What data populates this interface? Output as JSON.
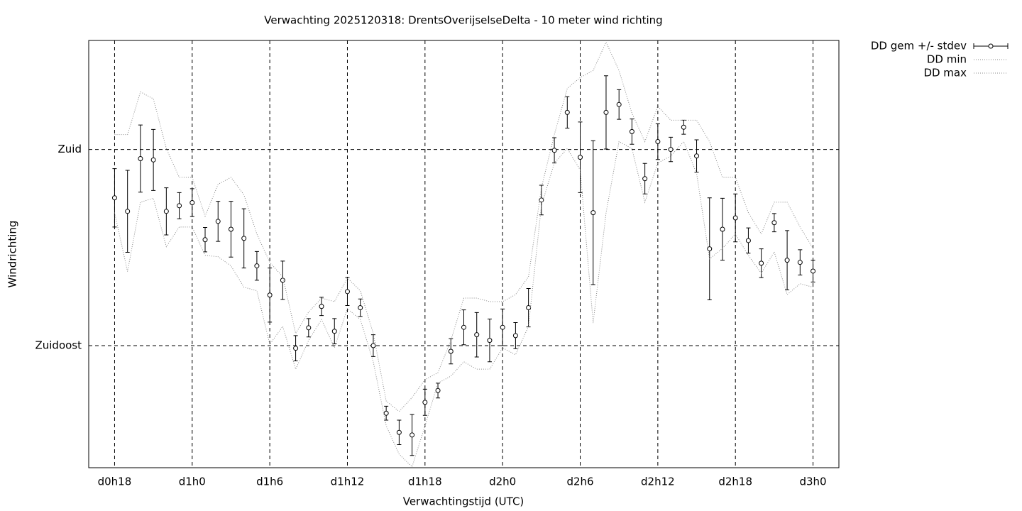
{
  "chart_data": {
    "type": "errorbar",
    "title": "Verwachting 2025120318: DrentsOverijselseDelta - 10 meter wind richting",
    "xlabel": "Verwachtingstijd (UTC)",
    "ylabel": "Windrichting",
    "x": [
      18,
      19,
      20,
      21,
      22,
      23,
      24,
      25,
      26,
      27,
      28,
      29,
      30,
      31,
      32,
      33,
      34,
      35,
      36,
      37,
      38,
      39,
      40,
      41,
      42,
      43,
      44,
      45,
      46,
      47,
      48,
      49,
      50,
      51,
      52,
      53,
      54,
      55,
      56,
      57,
      58,
      59,
      60,
      61,
      62,
      63,
      64,
      65,
      66,
      67,
      68,
      69,
      70,
      71,
      72
    ],
    "xlim": [
      16,
      74
    ],
    "xticks": [
      {
        "value": 18,
        "label": "d0h18"
      },
      {
        "value": 24,
        "label": "d1h0"
      },
      {
        "value": 30,
        "label": "d1h6"
      },
      {
        "value": 36,
        "label": "d1h12"
      },
      {
        "value": 42,
        "label": "d1h18"
      },
      {
        "value": 48,
        "label": "d2h0"
      },
      {
        "value": 54,
        "label": "d2h6"
      },
      {
        "value": 60,
        "label": "d2h12"
      },
      {
        "value": 66,
        "label": "d2h18"
      },
      {
        "value": 72,
        "label": "d3h0"
      }
    ],
    "ylim": [
      107,
      205
    ],
    "yticks": [
      {
        "value": 135,
        "label": "Zuidoost"
      },
      {
        "value": 180,
        "label": "Zuid"
      }
    ],
    "grid": true,
    "legend": "outside-top-right",
    "series": [
      {
        "name": "DD gem +/- stdev",
        "color": "#000000",
        "style": "errorbar",
        "values": [
          168.9,
          165.8,
          177.9,
          177.6,
          165.8,
          167.1,
          167.8,
          159.3,
          163.5,
          161.7,
          159.6,
          153.3,
          146.6,
          150.0,
          134.4,
          139.1,
          144.0,
          138.3,
          147.4,
          143.7,
          135.0,
          119.5,
          115.1,
          114.5,
          122.0,
          124.7,
          133.7,
          139.2,
          137.5,
          136.2,
          139.2,
          137.3,
          143.7,
          168.4,
          179.8,
          188.5,
          178.2,
          165.5,
          188.5,
          190.3,
          184.1,
          173.3,
          181.8,
          180.0,
          185.1,
          178.5,
          157.2,
          161.7,
          164.3,
          159.1,
          153.9,
          163.2,
          154.6,
          154.1,
          152.1
        ],
        "errors": [
          6.7,
          9.4,
          7.7,
          7.0,
          5.4,
          3.0,
          3.2,
          2.8,
          4.6,
          6.4,
          6.8,
          3.3,
          6.2,
          4.4,
          2.9,
          2.1,
          2.1,
          2.9,
          3.2,
          2.0,
          2.5,
          1.6,
          2.8,
          4.7,
          3.0,
          1.7,
          2.9,
          4.0,
          5.1,
          4.9,
          4.2,
          3.0,
          4.4,
          3.4,
          2.9,
          3.6,
          8.1,
          16.5,
          8.4,
          3.4,
          2.9,
          3.5,
          4.1,
          2.8,
          1.6,
          3.7,
          11.7,
          7.1,
          5.5,
          2.9,
          3.3,
          2.1,
          6.8,
          2.9,
          2.5
        ]
      },
      {
        "name": "DD min",
        "color": "#888888",
        "style": "dotted",
        "values": [
          165.5,
          152.0,
          167.9,
          168.8,
          157.7,
          162.2,
          162.2,
          155.7,
          155.4,
          153.3,
          148.4,
          147.6,
          135.3,
          139.4,
          129.6,
          136.2,
          141.0,
          134.5,
          143.5,
          141.0,
          131.3,
          116.6,
          110.1,
          107.2,
          116.6,
          126.4,
          128.0,
          131.3,
          129.6,
          129.6,
          134.5,
          132.9,
          139.4,
          167.1,
          176.9,
          180.2,
          175.3,
          140.2,
          165.5,
          181.8,
          180.2,
          167.9,
          176.9,
          178.5,
          181.8,
          174.5,
          154.9,
          157.3,
          160.6,
          155.7,
          151.6,
          156.5,
          146.7,
          149.2,
          148.4
        ]
      },
      {
        "name": "DD max",
        "color": "#888888",
        "style": "dotted",
        "values": [
          183.4,
          183.4,
          193.2,
          191.6,
          180.2,
          173.6,
          173.6,
          164.7,
          172.0,
          173.6,
          169.6,
          160.6,
          154.1,
          150.8,
          137.8,
          142.7,
          145.9,
          145.1,
          150.5,
          147.6,
          137.8,
          122.3,
          119.9,
          123.1,
          127.2,
          128.8,
          136.2,
          145.9,
          145.9,
          145.1,
          145.1,
          146.7,
          150.8,
          171.2,
          183.4,
          194.0,
          196.5,
          198.1,
          204.6,
          198.1,
          188.3,
          181.8,
          189.9,
          186.7,
          186.7,
          186.7,
          181.8,
          173.6,
          173.6,
          165.5,
          160.6,
          167.9,
          167.9,
          162.2,
          157.3
        ]
      }
    ]
  }
}
